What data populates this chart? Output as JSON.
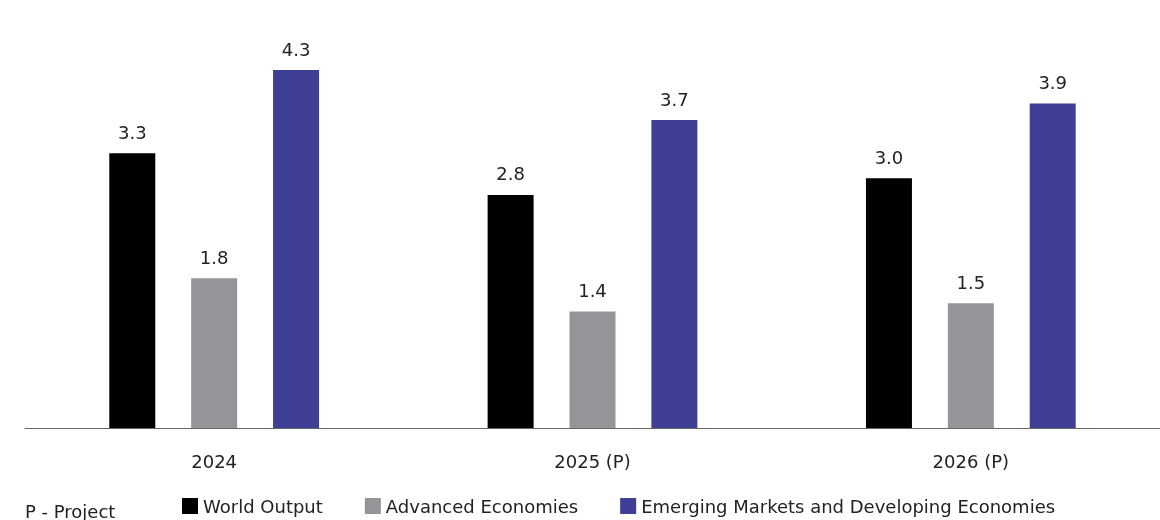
{
  "chart_data": {
    "type": "bar",
    "categories": [
      "2024",
      "2025 (P)",
      "2026 (P)"
    ],
    "series": [
      {
        "name": "World Output",
        "color": "#000000",
        "values": [
          3.3,
          2.8,
          3.0
        ],
        "value_labels": [
          "3.3",
          "2.8",
          "3.0"
        ]
      },
      {
        "name": "Advanced Economies",
        "color": "#939598",
        "values": [
          1.8,
          1.4,
          1.5
        ],
        "value_labels": [
          "1.8",
          "1.4",
          "1.5"
        ]
      },
      {
        "name": "Emerging Markets and Developing Economies",
        "color": "#3f3f96",
        "values": [
          4.3,
          3.7,
          3.9
        ],
        "value_labels": [
          "4.3",
          "3.7",
          "3.9"
        ]
      }
    ],
    "legend": "bottom",
    "tick_labels": "x",
    "annotations": [
      "P - Project"
    ]
  }
}
